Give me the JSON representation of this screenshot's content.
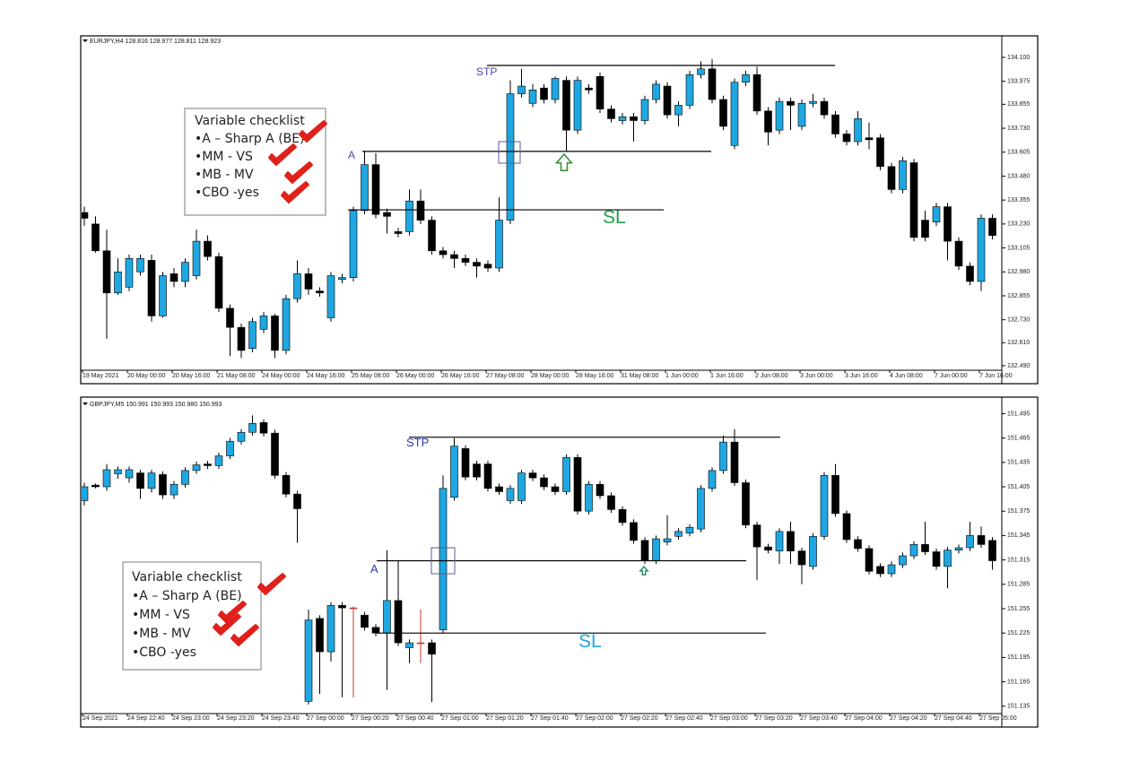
{
  "chart_data": [
    {
      "type": "candlestick",
      "header": "EURJPY,H4  128.816 128.977 128.811 128.923",
      "categories": [
        "19 May 2021",
        null,
        null,
        null,
        "20 May 00:00",
        null,
        null,
        null,
        "20 May 16:00",
        null,
        null,
        null,
        "21 May 08:00",
        null,
        null,
        null,
        "24 May 00:00",
        null,
        null,
        null,
        "24 May 16:00",
        null,
        null,
        null,
        "25 May 08:00",
        null,
        null,
        null,
        "26 May 00:00",
        null,
        null,
        null,
        "26 May 16:00",
        null,
        null,
        null,
        "27 May 08:00",
        null,
        null,
        null,
        "28 May 00:00",
        null,
        null,
        null,
        "28 May 16:00",
        null,
        null,
        null,
        "31 May 08:00",
        null,
        null,
        null,
        "1 Jun 00:00",
        null,
        null,
        null,
        "1 Jun 16:00",
        null,
        null,
        null,
        "2 Jun 08:00",
        null,
        null,
        null,
        "3 Jun 00:00",
        null,
        null,
        null,
        "3 Jun 16:00",
        null,
        null,
        null,
        "4 Jun 08:00",
        null,
        null,
        null,
        "7 Jun 00:00",
        null,
        null,
        null,
        "7 Jun 16:00",
        null
      ],
      "open": [
        133.29,
        133.23,
        133.09,
        132.87,
        132.9,
        132.98,
        133.04,
        132.75,
        132.97,
        132.93,
        132.96,
        133.14,
        133.06,
        132.79,
        132.69,
        132.58,
        132.68,
        132.75,
        132.57,
        132.84,
        132.97,
        132.88,
        132.74,
        132.94,
        132.95,
        133.3,
        133.54,
        133.29,
        133.19,
        133.19,
        133.35,
        133.25,
        133.09,
        133.07,
        133.05,
        133.03,
        133.02,
        133.0,
        133.25,
        133.91,
        133.86,
        133.94,
        133.88,
        133.98,
        133.72,
        133.94,
        134.0,
        133.83,
        133.77,
        133.79,
        133.77,
        133.88,
        133.95,
        133.8,
        133.85,
        134.01,
        134.04,
        133.88,
        133.64,
        133.97,
        134.01,
        133.82,
        133.72,
        133.87,
        133.74,
        133.86,
        133.87,
        133.8,
        133.7,
        133.66,
        133.68,
        133.68,
        133.53,
        133.41,
        133.55,
        133.25,
        133.24,
        133.32,
        133.14,
        133.01,
        132.93,
        133.26
      ],
      "high": [
        133.32,
        133.27,
        133.2,
        133.05,
        133.07,
        133.07,
        133.07,
        132.98,
        133.0,
        133.05,
        133.2,
        133.17,
        133.08,
        132.81,
        132.71,
        132.74,
        132.77,
        132.76,
        132.86,
        133.04,
        133.0,
        132.9,
        132.98,
        132.97,
        133.32,
        133.61,
        133.6,
        133.31,
        133.21,
        133.41,
        133.41,
        133.27,
        133.11,
        133.09,
        133.07,
        133.05,
        133.04,
        133.37,
        133.98,
        134.04,
        133.96,
        133.96,
        134.0,
        134.0,
        134.0,
        133.96,
        134.02,
        133.85,
        133.81,
        133.81,
        133.9,
        133.98,
        133.97,
        133.87,
        134.03,
        134.08,
        134.09,
        133.9,
        133.99,
        134.03,
        134.05,
        133.84,
        133.89,
        133.89,
        133.88,
        133.91,
        133.89,
        133.82,
        133.72,
        133.82,
        133.76,
        133.7,
        133.55,
        133.58,
        133.57,
        133.3,
        133.34,
        133.34,
        133.16,
        133.03,
        133.28,
        133.28
      ],
      "low": [
        133.22,
        133.08,
        132.63,
        132.86,
        132.88,
        132.96,
        132.72,
        132.74,
        132.9,
        132.9,
        132.94,
        133.04,
        132.77,
        132.54,
        132.53,
        132.56,
        132.66,
        132.53,
        132.55,
        132.82,
        132.86,
        132.85,
        132.72,
        132.92,
        132.93,
        133.28,
        133.26,
        133.18,
        133.16,
        133.17,
        133.23,
        133.07,
        133.05,
        133.0,
        133.01,
        132.95,
        132.98,
        132.98,
        133.23,
        133.89,
        133.84,
        133.86,
        133.86,
        133.61,
        133.7,
        133.91,
        133.81,
        133.76,
        133.75,
        133.66,
        133.75,
        133.86,
        133.78,
        133.74,
        133.83,
        133.99,
        133.86,
        133.72,
        133.62,
        133.95,
        133.8,
        133.64,
        133.7,
        133.72,
        133.72,
        133.84,
        133.78,
        133.68,
        133.64,
        133.64,
        133.62,
        133.51,
        133.39,
        133.39,
        133.14,
        133.14,
        133.22,
        133.04,
        132.99,
        132.91,
        132.88,
        133.15
      ],
      "close": [
        133.26,
        133.09,
        132.87,
        132.98,
        133.05,
        133.05,
        132.75,
        132.96,
        132.93,
        133.03,
        133.14,
        133.06,
        132.79,
        132.69,
        132.57,
        132.72,
        132.75,
        132.57,
        132.84,
        132.97,
        132.89,
        132.87,
        132.96,
        132.95,
        133.3,
        133.54,
        133.28,
        133.27,
        133.18,
        133.35,
        133.25,
        133.09,
        133.07,
        133.05,
        133.03,
        133.01,
        133.0,
        133.25,
        133.91,
        133.95,
        133.93,
        133.88,
        133.99,
        133.72,
        133.98,
        133.93,
        133.83,
        133.78,
        133.79,
        133.77,
        133.88,
        133.96,
        133.8,
        133.85,
        134.01,
        134.04,
        133.88,
        133.74,
        133.97,
        134.01,
        133.82,
        133.71,
        133.87,
        133.85,
        133.86,
        133.87,
        133.8,
        133.7,
        133.66,
        133.78,
        133.67,
        133.53,
        133.41,
        133.56,
        133.16,
        133.16,
        133.32,
        133.14,
        133.01,
        132.93,
        133.26,
        133.17
      ],
      "up_color": "#1ea7e1",
      "down_color": "#000000",
      "doji_color": "#c0392b",
      "ylim": [
        132.471,
        134.203
      ],
      "yticks": [
        {
          "value": 134.1,
          "label": "134.100"
        },
        {
          "value": 133.975,
          "label": "133.975"
        },
        {
          "value": 133.855,
          "label": "133.855"
        },
        {
          "value": 133.73,
          "label": "133.730"
        },
        {
          "value": 133.605,
          "label": "133.605"
        },
        {
          "value": 133.48,
          "label": "133.480"
        },
        {
          "value": 133.355,
          "label": "133.355"
        },
        {
          "value": 133.23,
          "label": "133.230"
        },
        {
          "value": 133.105,
          "label": "133.105"
        },
        {
          "value": 132.98,
          "label": "132.980"
        },
        {
          "value": 132.855,
          "label": "132.855"
        },
        {
          "value": 132.73,
          "label": "132.730"
        },
        {
          "value": 132.61,
          "label": "132.610"
        },
        {
          "value": 132.49,
          "label": "132.490"
        }
      ],
      "levels": [
        {
          "name": "STP",
          "value": 134.058
        },
        {
          "name": "A",
          "value": 133.609
        },
        {
          "name": "SL",
          "value": 133.304
        }
      ],
      "checklist": {
        "title": "Variable checklist",
        "items": [
          "•A – Sharp A (BE)",
          "•MM - VS",
          "•MB - MV",
          "•CBO -yes"
        ]
      }
    },
    {
      "type": "candlestick",
      "header": "GBPJPY,M5  150.991 150.993 150.980 150.993",
      "categories": [
        "24 Sep 2021",
        null,
        null,
        null,
        "24 Sep 22:40",
        null,
        null,
        null,
        "24 Sep 23:00",
        null,
        null,
        null,
        "24 Sep 23:20",
        null,
        null,
        null,
        "24 Sep 23:40",
        null,
        null,
        null,
        "27 Sep 00:00",
        null,
        null,
        null,
        "27 Sep 00:20",
        null,
        null,
        null,
        "27 Sep 00:40",
        null,
        null,
        null,
        "27 Sep 01:00",
        null,
        null,
        null,
        "27 Sep 01:20",
        null,
        null,
        null,
        "27 Sep 01:40",
        null,
        null,
        null,
        "27 Sep 02:00",
        null,
        null,
        null,
        "27 Sep 02:20",
        null,
        null,
        null,
        "27 Sep 02:40",
        null,
        null,
        null,
        "27 Sep 03:00",
        null,
        null,
        null,
        "27 Sep 03:20",
        null,
        null,
        null,
        "27 Sep 03:40",
        null,
        null,
        null,
        "27 Sep 04:00",
        null,
        null,
        null,
        "27 Sep 04:20",
        null,
        null,
        null,
        "27 Sep 04:40",
        null,
        null,
        null,
        "27 Sep 05:00",
        null
      ],
      "open": [
        151.388,
        151.407,
        151.405,
        151.421,
        151.416,
        151.422,
        151.403,
        151.42,
        151.395,
        151.408,
        151.425,
        151.433,
        151.431,
        151.443,
        151.461,
        151.472,
        151.484,
        151.471,
        151.419,
        151.396,
        151.141,
        151.243,
        151.202,
        151.259,
        151.256,
        151.247,
        151.232,
        151.225,
        151.265,
        151.207,
        151.213,
        151.213,
        151.229,
        151.392,
        151.452,
        151.433,
        151.433,
        151.405,
        151.388,
        151.388,
        151.422,
        151.416,
        151.405,
        151.399,
        151.441,
        151.375,
        151.408,
        151.394,
        151.377,
        151.361,
        151.339,
        151.314,
        151.337,
        151.344,
        151.348,
        151.353,
        151.403,
        151.425,
        151.46,
        151.41,
        151.358,
        151.331,
        151.326,
        151.35,
        151.326,
        151.307,
        151.344,
        151.419,
        151.372,
        151.34,
        151.329,
        151.307,
        151.298,
        151.309,
        151.32,
        151.334,
        151.325,
        151.307,
        151.327,
        151.33,
        151.345,
        151.339
      ],
      "high": [
        151.41,
        151.409,
        151.433,
        151.43,
        151.43,
        151.426,
        151.426,
        151.424,
        151.412,
        151.429,
        151.436,
        151.437,
        151.447,
        151.465,
        151.476,
        151.493,
        151.488,
        151.475,
        151.423,
        151.4,
        151.254,
        151.247,
        151.263,
        151.263,
        151.258,
        151.251,
        151.236,
        151.327,
        151.314,
        151.217,
        151.254,
        151.217,
        151.419,
        151.465,
        151.456,
        151.437,
        151.437,
        151.409,
        151.407,
        151.426,
        151.426,
        151.42,
        151.409,
        151.445,
        151.445,
        151.412,
        151.412,
        151.398,
        151.381,
        151.365,
        151.343,
        151.345,
        151.37,
        151.354,
        151.359,
        151.407,
        151.429,
        151.468,
        151.476,
        151.414,
        151.362,
        151.335,
        151.354,
        151.362,
        151.33,
        151.348,
        151.423,
        151.433,
        151.376,
        151.344,
        151.333,
        151.311,
        151.313,
        151.324,
        151.338,
        151.362,
        151.329,
        151.331,
        151.334,
        151.362,
        151.356,
        151.343
      ],
      "low": [
        151.382,
        151.403,
        151.4,
        151.415,
        151.41,
        151.39,
        151.398,
        151.39,
        151.39,
        151.404,
        151.421,
        151.427,
        151.427,
        151.439,
        151.457,
        151.468,
        151.467,
        151.415,
        151.392,
        151.336,
        151.137,
        151.15,
        151.19,
        151.146,
        151.146,
        151.228,
        151.221,
        151.155,
        151.209,
        151.188,
        151.188,
        151.14,
        151.225,
        151.388,
        151.413,
        151.413,
        151.399,
        151.395,
        151.384,
        151.384,
        151.412,
        151.401,
        151.395,
        151.395,
        151.371,
        151.371,
        151.39,
        151.373,
        151.357,
        151.335,
        151.31,
        151.31,
        151.333,
        151.34,
        151.344,
        151.349,
        151.399,
        151.421,
        151.406,
        151.354,
        151.29,
        151.323,
        151.31,
        151.31,
        151.285,
        151.303,
        151.34,
        151.368,
        151.336,
        151.325,
        151.297,
        151.294,
        151.294,
        151.305,
        151.316,
        151.321,
        151.303,
        151.28,
        151.323,
        151.326,
        151.33,
        151.303
      ],
      "close": [
        151.405,
        151.405,
        151.426,
        151.426,
        151.426,
        151.403,
        151.422,
        151.395,
        151.408,
        151.425,
        151.432,
        151.431,
        151.443,
        151.461,
        151.472,
        151.483,
        151.471,
        151.419,
        151.396,
        151.378,
        151.241,
        151.202,
        151.259,
        151.256,
        151.256,
        151.232,
        151.225,
        151.265,
        151.213,
        151.213,
        151.213,
        151.199,
        151.403,
        151.455,
        151.417,
        151.417,
        151.403,
        151.399,
        151.403,
        151.422,
        151.416,
        151.405,
        151.399,
        151.441,
        151.375,
        151.408,
        151.394,
        151.377,
        151.361,
        151.339,
        151.314,
        151.341,
        151.341,
        151.35,
        151.355,
        151.403,
        151.425,
        151.46,
        151.41,
        151.358,
        151.331,
        151.327,
        151.35,
        151.326,
        151.309,
        151.344,
        151.419,
        151.372,
        151.34,
        151.329,
        151.301,
        151.298,
        151.309,
        151.32,
        151.334,
        151.325,
        151.307,
        151.327,
        151.33,
        151.345,
        151.334,
        151.314
      ],
      "up_color": "#1ea7e1",
      "down_color": "#000000",
      "doji_color": "#c0392b",
      "ylim": [
        151.127,
        151.512
      ],
      "yticks": [
        {
          "value": 151.495,
          "label": "151.495"
        },
        {
          "value": 151.465,
          "label": "151.465"
        },
        {
          "value": 151.435,
          "label": "151.435"
        },
        {
          "value": 151.405,
          "label": "151.405"
        },
        {
          "value": 151.375,
          "label": "151.375"
        },
        {
          "value": 151.345,
          "label": "151.345"
        },
        {
          "value": 151.315,
          "label": "151.315"
        },
        {
          "value": 151.285,
          "label": "151.285"
        },
        {
          "value": 151.255,
          "label": "151.255"
        },
        {
          "value": 151.225,
          "label": "151.225"
        },
        {
          "value": 151.195,
          "label": "151.195"
        },
        {
          "value": 151.165,
          "label": "151.165"
        },
        {
          "value": 151.135,
          "label": "151.135"
        }
      ],
      "levels": [
        {
          "name": "STP",
          "value": 151.466
        },
        {
          "name": "A",
          "value": 151.314
        },
        {
          "name": "SL",
          "value": 151.225
        }
      ],
      "checklist": {
        "title": "Variable checklist",
        "items": [
          "•A – Sharp A (BE)",
          "•MM - VS",
          "•MB - MV",
          "•CBO -yes"
        ]
      }
    }
  ]
}
